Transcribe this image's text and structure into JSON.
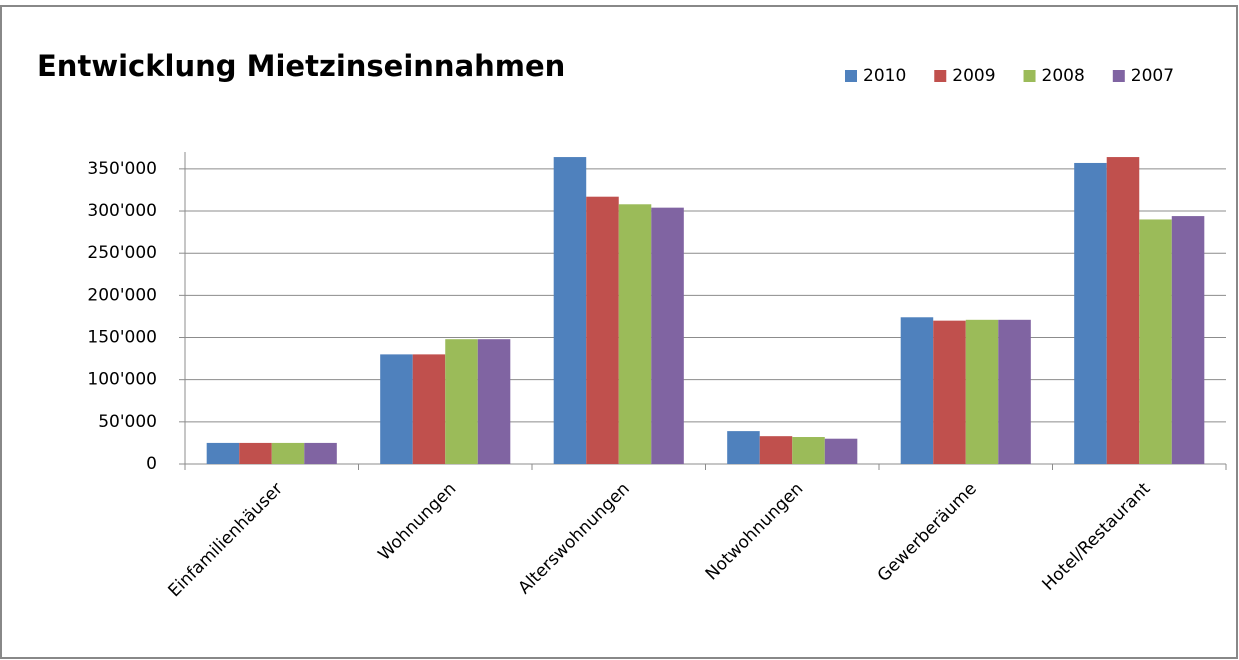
{
  "chart_data": {
    "type": "bar",
    "title": "Entwicklung Mietzinseinnahmen",
    "categories": [
      "Einfamilienhäuser",
      "Wohnungen",
      "Alterswohnungen",
      "Notwohnungen",
      "Gewerberäume",
      "Hotel/Restaurant"
    ],
    "series": [
      {
        "name": "2010",
        "color": "#4f81bd",
        "values": [
          25000,
          130000,
          364000,
          39000,
          174000,
          357000
        ]
      },
      {
        "name": "2009",
        "color": "#c0504d",
        "values": [
          25000,
          130000,
          317000,
          33000,
          170000,
          364000
        ]
      },
      {
        "name": "2008",
        "color": "#9bbb59",
        "values": [
          25000,
          148000,
          308000,
          32000,
          171000,
          290000
        ]
      },
      {
        "name": "2007",
        "color": "#8064a2",
        "values": [
          25000,
          148000,
          304000,
          30000,
          171000,
          294000
        ]
      }
    ],
    "ylim": [
      0,
      370000
    ],
    "yticks": [
      0,
      {
        "value": 50000,
        "label": "50'000"
      },
      {
        "value": 100000,
        "label": "100'000"
      },
      {
        "value": 150000,
        "label": "150'000"
      },
      {
        "value": 200000,
        "label": "200'000"
      },
      {
        "value": 250000,
        "label": "250'000"
      },
      {
        "value": 300000,
        "label": "300'000"
      },
      {
        "value": 350000,
        "label": "350'000"
      }
    ],
    "grid": true,
    "legend": "top-right"
  }
}
